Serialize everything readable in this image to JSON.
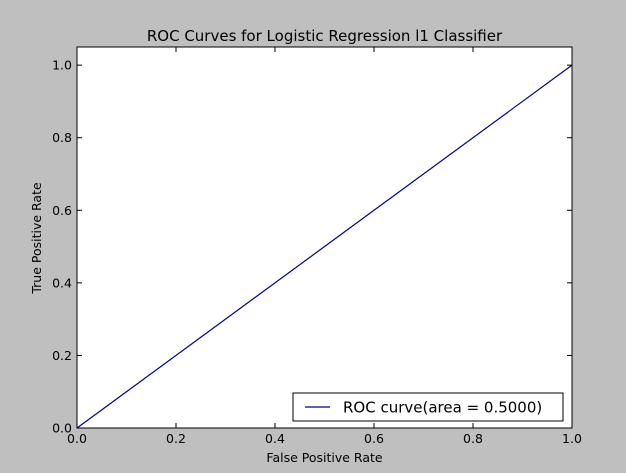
{
  "colors": {
    "figure_background": "#bfbfbf",
    "axes_background": "#ffffff",
    "series_color": "#00008b",
    "axis_color": "#000000"
  },
  "chart_data": {
    "type": "line",
    "title": "ROC Curves for Logistic Regression l1 Classifier",
    "xlabel": "False Positive Rate",
    "ylabel": "True Positive Rate",
    "xlim": [
      0.0,
      1.0
    ],
    "ylim": [
      0.0,
      1.05
    ],
    "xticks": [
      0.0,
      0.2,
      0.4,
      0.6,
      0.8,
      1.0
    ],
    "xtick_labels": [
      "0.0",
      "0.2",
      "0.4",
      "0.6",
      "0.8",
      "1.0"
    ],
    "yticks": [
      0.0,
      0.2,
      0.4,
      0.6,
      0.8,
      1.0
    ],
    "ytick_labels": [
      "0.0",
      "0.2",
      "0.4",
      "0.6",
      "0.8",
      "1.0"
    ],
    "grid": false,
    "legend_position": "lower-right",
    "series": [
      {
        "name": "ROC curve(area = 0.5000)",
        "x": [
          0.0,
          1.0
        ],
        "y": [
          0.0,
          1.0
        ]
      }
    ]
  }
}
